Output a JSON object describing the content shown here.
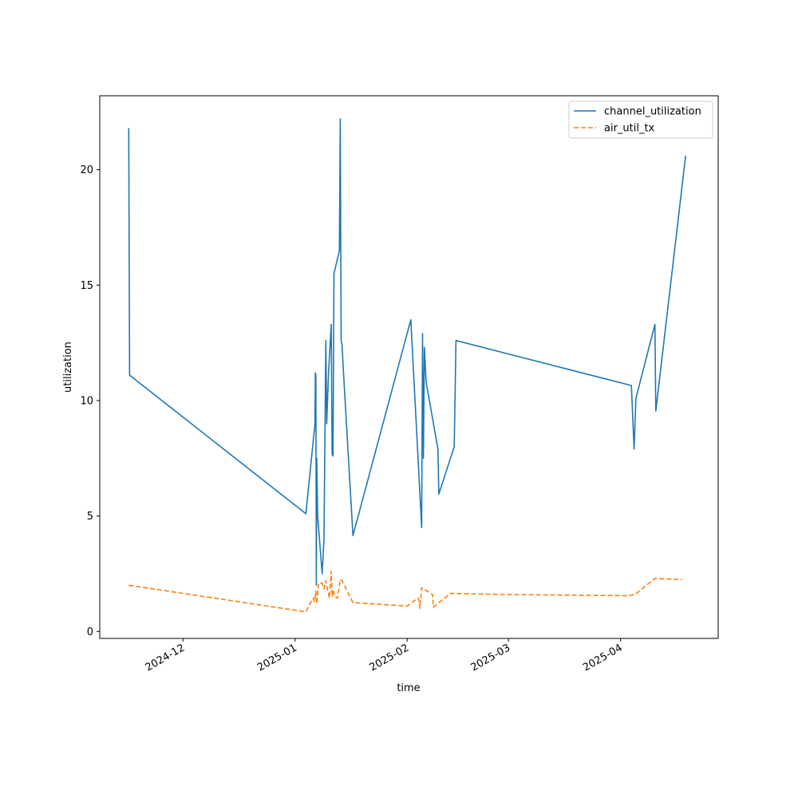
{
  "chart_data": {
    "type": "line",
    "xlabel": "time",
    "ylabel": "utilization",
    "xlim": [
      "2024-11-08",
      "2025-04-28"
    ],
    "ylim": [
      -0.3,
      23.2
    ],
    "x_ticks": [
      {
        "date": "2024-12-01",
        "label": "2024-12"
      },
      {
        "date": "2025-01-01",
        "label": "2025-01"
      },
      {
        "date": "2025-02-01",
        "label": "2025-02"
      },
      {
        "date": "2025-03-01",
        "label": "2025-03"
      },
      {
        "date": "2025-04-01",
        "label": "2025-04"
      }
    ],
    "y_ticks": [
      0,
      5,
      10,
      15,
      20
    ],
    "legend_position": "top-right",
    "grid": false,
    "series": [
      {
        "name": "channel_utilization",
        "color": "#1f77b4",
        "style": "solid",
        "points": [
          [
            "2024-11-16T00:00",
            21.8
          ],
          [
            "2024-11-16T06:00",
            11.1
          ],
          [
            "2025-01-04T00:00",
            5.1
          ],
          [
            "2025-01-06T12:00",
            9.0
          ],
          [
            "2025-01-06T15:00",
            11.2
          ],
          [
            "2025-01-06T18:00",
            11.1
          ],
          [
            "2025-01-06T21:00",
            2.0
          ],
          [
            "2025-01-07T00:00",
            7.5
          ],
          [
            "2025-01-07T06:00",
            5.0
          ],
          [
            "2025-01-08T12:00",
            2.5
          ],
          [
            "2025-01-09T00:00",
            4.0
          ],
          [
            "2025-01-09T12:00",
            12.6
          ],
          [
            "2025-01-09T18:00",
            9.0
          ],
          [
            "2025-01-10T06:00",
            11.2
          ],
          [
            "2025-01-11T00:00",
            13.3
          ],
          [
            "2025-01-11T06:00",
            7.7
          ],
          [
            "2025-01-11T12:00",
            7.6
          ],
          [
            "2025-01-11T18:00",
            15.5
          ],
          [
            "2025-01-13T06:00",
            16.5
          ],
          [
            "2025-01-13T12:00",
            22.2
          ],
          [
            "2025-01-13T18:00",
            12.6
          ],
          [
            "2025-01-14T00:00",
            12.4
          ],
          [
            "2025-01-14T06:00",
            11.6
          ],
          [
            "2025-01-17T00:00",
            4.15
          ],
          [
            "2025-02-02T00:00",
            13.5
          ],
          [
            "2025-02-05T00:00",
            4.5
          ],
          [
            "2025-02-05T06:00",
            12.9
          ],
          [
            "2025-02-05T12:00",
            7.5
          ],
          [
            "2025-02-05T18:00",
            12.3
          ],
          [
            "2025-02-06T06:00",
            10.8
          ],
          [
            "2025-02-09T12:00",
            7.9
          ],
          [
            "2025-02-09T18:00",
            5.95
          ],
          [
            "2025-02-14T00:00",
            8.0
          ],
          [
            "2025-02-14T12:00",
            12.6
          ],
          [
            "2025-04-04T00:00",
            10.65
          ],
          [
            "2025-04-04T18:00",
            7.9
          ],
          [
            "2025-04-05T06:00",
            10.1
          ],
          [
            "2025-04-10T12:00",
            13.3
          ],
          [
            "2025-04-10T18:00",
            9.55
          ],
          [
            "2025-04-19T00:00",
            20.6
          ]
        ]
      },
      {
        "name": "air_util_tx",
        "color": "#ff7f0e",
        "style": "dashed",
        "points": [
          [
            "2024-11-16T00:00",
            2.0
          ],
          [
            "2025-01-04T00:00",
            0.85
          ],
          [
            "2025-01-06T00:00",
            1.45
          ],
          [
            "2025-01-06T09:00",
            1.3
          ],
          [
            "2025-01-06T18:00",
            1.75
          ],
          [
            "2025-01-07T00:00",
            1.2
          ],
          [
            "2025-01-07T12:00",
            2.1
          ],
          [
            "2025-01-08T12:00",
            2.1
          ],
          [
            "2025-01-09T00:00",
            1.85
          ],
          [
            "2025-01-09T12:00",
            2.2
          ],
          [
            "2025-01-10T00:00",
            1.8
          ],
          [
            "2025-01-10T12:00",
            1.45
          ],
          [
            "2025-01-11T00:00",
            2.6
          ],
          [
            "2025-01-11T06:00",
            1.5
          ],
          [
            "2025-01-11T12:00",
            1.8
          ],
          [
            "2025-01-12T00:00",
            1.5
          ],
          [
            "2025-01-12T18:00",
            1.45
          ],
          [
            "2025-01-13T12:00",
            2.25
          ],
          [
            "2025-01-14T00:00",
            2.2
          ],
          [
            "2025-01-17T00:00",
            1.25
          ],
          [
            "2025-02-01T00:00",
            1.1
          ],
          [
            "2025-02-04T00:00",
            1.45
          ],
          [
            "2025-02-04T06:00",
            1.35
          ],
          [
            "2025-02-04T12:00",
            1.0
          ],
          [
            "2025-02-05T00:00",
            1.9
          ],
          [
            "2025-02-08T00:00",
            1.6
          ],
          [
            "2025-02-08T06:00",
            1.05
          ],
          [
            "2025-02-13T00:00",
            1.65
          ],
          [
            "2025-02-28T00:00",
            1.6
          ],
          [
            "2025-04-03T00:00",
            1.55
          ],
          [
            "2025-04-05T00:00",
            1.6
          ],
          [
            "2025-04-10T12:00",
            2.3
          ],
          [
            "2025-04-18T00:00",
            2.25
          ]
        ]
      }
    ]
  }
}
